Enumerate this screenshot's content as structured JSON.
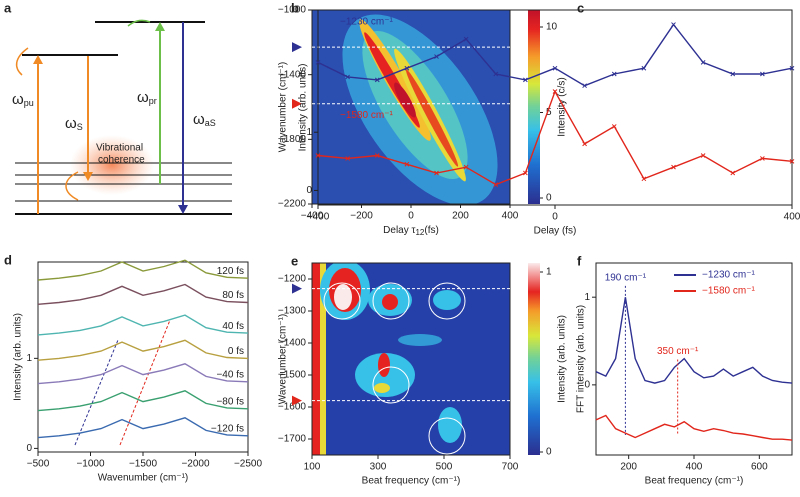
{
  "diagram": {
    "label": "a",
    "arrows": [
      {
        "main": "ω",
        "sub": "pu"
      },
      {
        "main": "ω",
        "sub": "S"
      },
      {
        "main": "ω",
        "sub": "pr"
      },
      {
        "main": "ω",
        "sub": "aS"
      }
    ],
    "coherence": [
      "Vibrational",
      "coherence"
    ]
  },
  "chart_data": [
    {
      "label": "b",
      "type": "heatmap",
      "xlabel": [
        {
          "text": "Delay  τ"
        },
        {
          "text": "12",
          "sub": true
        },
        {
          "text": "(fs)"
        }
      ],
      "ylabel": "Wavenumber (cm⁻¹)",
      "xlim": [
        -400,
        400
      ],
      "xticks": [
        {
          "value": -400,
          "label": "−400"
        },
        {
          "value": -200,
          "label": "−200"
        },
        0,
        200,
        400
      ],
      "ylim": [
        -2200,
        -1000
      ],
      "yticks": [
        {
          "value": -2200,
          "label": "−2200"
        },
        {
          "value": -1800,
          "label": "−1800"
        },
        {
          "value": -1400,
          "label": "−1400"
        },
        {
          "value": -1000,
          "label": "−1000"
        }
      ],
      "clim": [
        0,
        10
      ],
      "cticks": [
        0,
        5,
        10
      ],
      "clabel": "Intensity (c/s)",
      "colormap": "jet",
      "reference_lines": [
        {
          "value": -1230,
          "color": "#2e3192"
        },
        {
          "value": -1580,
          "color": "#e1261c"
        }
      ]
    },
    {
      "label": "c",
      "type": "line",
      "markers": "x",
      "legend": "text",
      "xlabel": "Delay (fs)",
      "ylabel": "Intensity (arb. units)",
      "x": [
        -400,
        -350,
        -300,
        -250,
        -200,
        -150,
        -100,
        -50,
        0,
        50,
        100,
        150,
        200,
        250,
        300,
        350,
        400
      ],
      "xlim": [
        -400,
        400
      ],
      "xticks": [
        {
          "value": -400,
          "label": "−400"
        },
        0,
        400
      ],
      "ylim": [
        -0.25,
        3.1
      ],
      "yticks": [
        0,
        1
      ],
      "series": [
        {
          "name": "−1230 cm⁻¹",
          "color": "#2e3192",
          "values": [
            2.2,
            1.95,
            1.9,
            2.1,
            2.3,
            2.6,
            2.0,
            1.9,
            2.1,
            1.8,
            2.0,
            2.1,
            2.85,
            2.2,
            2.0,
            2.0,
            2.1
          ]
        },
        {
          "name": "−1580 cm⁻¹",
          "color": "#e1261c",
          "values": [
            0.6,
            0.55,
            0.6,
            0.45,
            0.3,
            0.4,
            0.1,
            0.3,
            1.7,
            0.8,
            1.1,
            0.2,
            0.4,
            0.6,
            0.3,
            0.55,
            0.5
          ]
        }
      ]
    },
    {
      "label": "d",
      "type": "line",
      "legend": "inline",
      "xlabel": "Wavenumber (cm⁻¹)",
      "ylabel": "Intensity (arb. units)",
      "x": [
        -500,
        -700,
        -900,
        -1100,
        -1300,
        -1500,
        -1700,
        -1900,
        -2100,
        -2300,
        -2500
      ],
      "xlim": [
        -500,
        -2500
      ],
      "xticks": [
        {
          "value": -500,
          "label": "−500"
        },
        {
          "value": -1000,
          "label": "−1000"
        },
        {
          "value": -1500,
          "label": "−1500"
        },
        {
          "value": -2000,
          "label": "−2000"
        },
        {
          "value": -2500,
          "label": "−2500"
        }
      ],
      "ylim": [
        -0.04,
        2.07
      ],
      "yticks": [
        0,
        1
      ],
      "series": [
        {
          "name": "120 fs",
          "color": "#8a9a3a",
          "values": [
            1.87,
            1.89,
            1.92,
            1.97,
            2.07,
            1.97,
            2.02,
            2.09,
            1.95,
            1.9,
            1.89
          ]
        },
        {
          "name": "80 fs",
          "color": "#7a4f5e",
          "values": [
            1.6,
            1.62,
            1.65,
            1.7,
            1.8,
            1.7,
            1.75,
            1.82,
            1.68,
            1.63,
            1.62
          ]
        },
        {
          "name": "40 fs",
          "color": "#4fb5b0",
          "values": [
            1.26,
            1.28,
            1.31,
            1.36,
            1.46,
            1.36,
            1.41,
            1.48,
            1.34,
            1.29,
            1.28
          ]
        },
        {
          "name": "0 fs",
          "color": "#b8a040",
          "values": [
            0.98,
            1.0,
            1.03,
            1.08,
            1.18,
            1.08,
            1.13,
            1.2,
            1.06,
            1.01,
            1.0
          ]
        },
        {
          "name": "−40 fs",
          "color": "#8a7ab8",
          "values": [
            0.72,
            0.74,
            0.77,
            0.82,
            0.92,
            0.82,
            0.87,
            0.94,
            0.8,
            0.75,
            0.74
          ]
        },
        {
          "name": "−80 fs",
          "color": "#3aa070",
          "values": [
            0.42,
            0.44,
            0.47,
            0.52,
            0.62,
            0.52,
            0.57,
            0.64,
            0.5,
            0.45,
            0.44
          ]
        },
        {
          "name": "−120 fs",
          "color": "#3a6ab0",
          "values": [
            0.12,
            0.14,
            0.17,
            0.22,
            0.32,
            0.22,
            0.27,
            0.34,
            0.2,
            0.15,
            0.14
          ]
        }
      ]
    },
    {
      "label": "e",
      "type": "heatmap",
      "xlabel": "Beat frequency (cm⁻¹)",
      "ylabel": "Wavenumber (cm⁻¹)",
      "xlim": [
        100,
        700
      ],
      "xticks": [
        100,
        300,
        500,
        700
      ],
      "ylim": [
        -1750,
        -1150
      ],
      "yticks": [
        {
          "value": -1700,
          "label": "−1700"
        },
        {
          "value": -1600,
          "label": "−1600"
        },
        {
          "value": -1500,
          "label": "−1500"
        },
        {
          "value": -1400,
          "label": "−1400"
        },
        {
          "value": -1300,
          "label": "−1300"
        },
        {
          "value": -1200,
          "label": "−1200"
        }
      ],
      "clim": [
        0,
        1
      ],
      "cticks": [
        0,
        1
      ],
      "clabel": "Intensity (arb. units)",
      "colormap": "jet-white",
      "reference_lines": [
        {
          "value": -1230,
          "color": "#2e3192"
        },
        {
          "value": -1580,
          "color": "#e1261c"
        }
      ]
    },
    {
      "label": "f",
      "type": "line",
      "legend": "upper right",
      "xlabel": "Beat frequency (cm⁻¹)",
      "ylabel": "FFT intensity (arb. units)",
      "x": [
        100,
        130,
        160,
        190,
        220,
        250,
        280,
        310,
        340,
        370,
        400,
        430,
        460,
        490,
        520,
        550,
        580,
        610,
        640,
        670,
        700
      ],
      "xlim": [
        100,
        700
      ],
      "xticks": [
        200,
        400,
        600
      ],
      "ylim": [
        -0.8,
        1.39
      ],
      "yticks": [
        0,
        1
      ],
      "series": [
        {
          "name": "−1230 cm⁻¹",
          "color": "#2e3192",
          "values": [
            0.15,
            0.1,
            0.3,
            1.0,
            0.3,
            0.05,
            0.02,
            0.05,
            0.2,
            0.3,
            0.15,
            0.08,
            0.1,
            0.18,
            0.1,
            0.15,
            0.2,
            0.1,
            0.05,
            0.03,
            0.02
          ]
        },
        {
          "name": "−1580 cm⁻¹",
          "color": "#e1261c",
          "values": [
            -0.4,
            -0.35,
            -0.5,
            -0.55,
            -0.6,
            -0.55,
            -0.5,
            -0.45,
            -0.48,
            -0.42,
            -0.5,
            -0.53,
            -0.5,
            -0.52,
            -0.55,
            -0.56,
            -0.58,
            -0.6,
            -0.62,
            -0.62,
            -0.63
          ]
        }
      ],
      "annotations": [
        {
          "text": "190 cm⁻¹",
          "x": 190,
          "y": 1.22,
          "color": "#2e3192"
        },
        {
          "text": "350 cm⁻¹",
          "x": 350,
          "y": 0.38,
          "color": "#e1261c"
        }
      ]
    }
  ]
}
